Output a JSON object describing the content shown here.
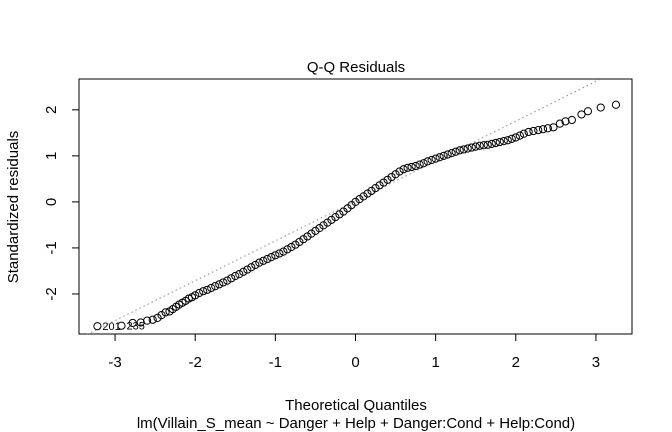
{
  "chart_data": {
    "type": "scatter",
    "title": "Q-Q Residuals",
    "xlabel": "Theoretical Quantiles",
    "ylabel": "Standardized residuals",
    "subtitle": "lm(Villain_S_mean ~ Danger + Help + Danger:Cond + Help:Cond)",
    "xlim": [
      -3.45,
      3.45
    ],
    "ylim": [
      -2.87,
      2.67
    ],
    "x_ticks": [
      -3,
      -2,
      -1,
      0,
      1,
      2,
      3
    ],
    "y_ticks": [
      -2,
      -1,
      0,
      1,
      2
    ],
    "tick_labels_x": [
      "-3",
      "-2",
      "-1",
      "0",
      "1",
      "2",
      "3"
    ],
    "tick_labels_y": [
      "-2",
      "-1",
      "0",
      "1",
      "2"
    ],
    "grid": false,
    "reference_line": {
      "style": "dotted",
      "slope": 0.866,
      "intercept": 0.02
    },
    "point_labels": [
      {
        "label": "201",
        "x": -3.22,
        "y": -2.7
      },
      {
        "label": "235",
        "x": -2.92,
        "y": -2.69
      }
    ],
    "series": [
      {
        "points": [
          [
            -3.22,
            -2.7
          ],
          [
            -2.92,
            -2.69
          ],
          [
            -2.78,
            -2.63
          ],
          [
            -2.68,
            -2.62
          ],
          [
            -2.6,
            -2.58
          ],
          [
            -2.53,
            -2.56
          ],
          [
            -2.47,
            -2.52
          ],
          [
            -2.42,
            -2.46
          ],
          [
            -2.37,
            -2.4
          ],
          [
            -2.32,
            -2.38
          ],
          [
            -2.28,
            -2.33
          ],
          [
            -2.24,
            -2.28
          ],
          [
            -2.2,
            -2.23
          ],
          [
            -2.16,
            -2.19
          ],
          [
            -2.12,
            -2.15
          ],
          [
            -2.08,
            -2.1
          ],
          [
            -2.04,
            -2.07
          ],
          [
            -2.0,
            -2.03
          ],
          [
            -1.95,
            -1.98
          ],
          [
            -1.9,
            -1.94
          ],
          [
            -1.85,
            -1.91
          ],
          [
            -1.8,
            -1.87
          ],
          [
            -1.75,
            -1.83
          ],
          [
            -1.7,
            -1.79
          ],
          [
            -1.65,
            -1.75
          ],
          [
            -1.6,
            -1.71
          ],
          [
            -1.55,
            -1.66
          ],
          [
            -1.5,
            -1.61
          ],
          [
            -1.45,
            -1.57
          ],
          [
            -1.4,
            -1.52
          ],
          [
            -1.35,
            -1.47
          ],
          [
            -1.3,
            -1.42
          ],
          [
            -1.25,
            -1.37
          ],
          [
            -1.2,
            -1.32
          ],
          [
            -1.15,
            -1.28
          ],
          [
            -1.1,
            -1.24
          ],
          [
            -1.05,
            -1.2
          ],
          [
            -1.0,
            -1.16
          ],
          [
            -0.95,
            -1.12
          ],
          [
            -0.9,
            -1.08
          ],
          [
            -0.85,
            -1.03
          ],
          [
            -0.8,
            -0.98
          ],
          [
            -0.75,
            -0.93
          ],
          [
            -0.7,
            -0.87
          ],
          [
            -0.65,
            -0.81
          ],
          [
            -0.6,
            -0.75
          ],
          [
            -0.55,
            -0.69
          ],
          [
            -0.5,
            -0.63
          ],
          [
            -0.45,
            -0.57
          ],
          [
            -0.4,
            -0.51
          ],
          [
            -0.35,
            -0.45
          ],
          [
            -0.3,
            -0.39
          ],
          [
            -0.25,
            -0.33
          ],
          [
            -0.2,
            -0.27
          ],
          [
            -0.15,
            -0.21
          ],
          [
            -0.1,
            -0.14
          ],
          [
            -0.05,
            -0.07
          ],
          [
            0.0,
            0.0
          ],
          [
            0.05,
            0.06
          ],
          [
            0.1,
            0.12
          ],
          [
            0.15,
            0.18
          ],
          [
            0.2,
            0.24
          ],
          [
            0.25,
            0.3
          ],
          [
            0.3,
            0.36
          ],
          [
            0.35,
            0.42
          ],
          [
            0.4,
            0.48
          ],
          [
            0.45,
            0.54
          ],
          [
            0.5,
            0.6
          ],
          [
            0.55,
            0.66
          ],
          [
            0.6,
            0.71
          ],
          [
            0.65,
            0.74
          ],
          [
            0.7,
            0.76
          ],
          [
            0.75,
            0.78
          ],
          [
            0.8,
            0.81
          ],
          [
            0.85,
            0.84
          ],
          [
            0.9,
            0.88
          ],
          [
            0.95,
            0.91
          ],
          [
            1.0,
            0.94
          ],
          [
            1.05,
            0.97
          ],
          [
            1.1,
            1.0
          ],
          [
            1.15,
            1.03
          ],
          [
            1.2,
            1.06
          ],
          [
            1.25,
            1.09
          ],
          [
            1.3,
            1.12
          ],
          [
            1.35,
            1.14
          ],
          [
            1.4,
            1.16
          ],
          [
            1.45,
            1.18
          ],
          [
            1.5,
            1.2
          ],
          [
            1.55,
            1.22
          ],
          [
            1.6,
            1.23
          ],
          [
            1.65,
            1.24
          ],
          [
            1.7,
            1.26
          ],
          [
            1.75,
            1.28
          ],
          [
            1.8,
            1.3
          ],
          [
            1.85,
            1.32
          ],
          [
            1.9,
            1.34
          ],
          [
            1.95,
            1.37
          ],
          [
            2.0,
            1.4
          ],
          [
            2.05,
            1.44
          ],
          [
            2.1,
            1.48
          ],
          [
            2.16,
            1.52
          ],
          [
            2.22,
            1.54
          ],
          [
            2.28,
            1.56
          ],
          [
            2.34,
            1.58
          ],
          [
            2.4,
            1.6
          ],
          [
            2.47,
            1.62
          ],
          [
            2.55,
            1.7
          ],
          [
            2.62,
            1.75
          ],
          [
            2.7,
            1.78
          ],
          [
            2.82,
            1.9
          ],
          [
            2.9,
            1.97
          ],
          [
            3.06,
            2.05
          ],
          [
            3.25,
            2.11
          ]
        ]
      }
    ]
  }
}
